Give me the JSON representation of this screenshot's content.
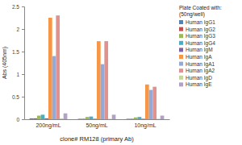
{
  "chart_data": {
    "type": "bar",
    "y_label": "Abs (405nm)",
    "x_label": "clone# RM128 (primary Ab)",
    "legend_title": [
      "Plate Coated with:",
      "(50ng/well)"
    ],
    "legend": "right",
    "grid": false,
    "categories": [
      "200ng/mL",
      "50ng/mL",
      "10ng/mL"
    ],
    "ylim": [
      0,
      2.5
    ],
    "yticks": [
      0,
      0.5,
      1,
      1.5,
      2,
      2.5
    ],
    "series": [
      {
        "name": "Human IgG1",
        "color": "#4f81bd",
        "values": [
          0.02,
          0.01,
          0.01
        ]
      },
      {
        "name": "Human IgG2",
        "color": "#c0504d",
        "values": [
          0.02,
          0.01,
          0.01
        ]
      },
      {
        "name": "Human IgG3",
        "color": "#9bbb59",
        "values": [
          0.08,
          0.05,
          0.04
        ]
      },
      {
        "name": "Human IgG4",
        "color": "#4bacc6",
        "values": [
          0.1,
          0.06,
          0.05
        ]
      },
      {
        "name": "Human IgM",
        "color": "#8064a2",
        "values": [
          0.02,
          0.01,
          0.01
        ]
      },
      {
        "name": "Human IgA",
        "color": "#f79646",
        "values": [
          2.25,
          1.73,
          0.77
        ]
      },
      {
        "name": "Human IgA1",
        "color": "#95a9d4",
        "values": [
          1.4,
          1.22,
          0.65
        ]
      },
      {
        "name": "Human IgA2",
        "color": "#e0928f",
        "values": [
          2.3,
          1.73,
          0.72
        ]
      },
      {
        "name": "Human IgD",
        "color": "#c3d69b",
        "values": [
          0.02,
          0.01,
          0.01
        ]
      },
      {
        "name": "Human IgE",
        "color": "#b3a2c7",
        "values": [
          0.13,
          0.1,
          0.08
        ]
      }
    ]
  }
}
